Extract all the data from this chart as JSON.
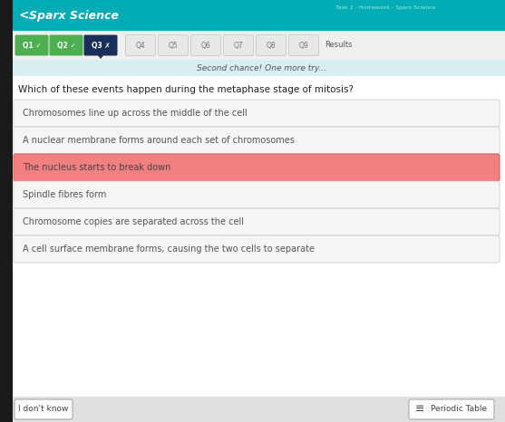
{
  "header_bg": "#00adb5",
  "header_text": "Sparx Science",
  "header_text_color": "#ffffff",
  "nav_buttons": [
    {
      "label": "Q1",
      "icon": "✓",
      "color": "#4caf50",
      "text_color": "#ffffff"
    },
    {
      "label": "Q2",
      "icon": "✓",
      "color": "#4caf50",
      "text_color": "#ffffff"
    },
    {
      "label": "Q3",
      "icon": "✗",
      "color": "#1a2e5a",
      "text_color": "#ffffff"
    }
  ],
  "nav_plain": [
    "Q4",
    "Q5",
    "Q6",
    "Q7",
    "Q8",
    "Q9"
  ],
  "nav_plain_color": "#e8e8e8",
  "nav_plain_text_color": "#777777",
  "results_label": "Results",
  "second_chance_text": "Second chance! One more try...",
  "question": "Which of these events happen during the metaphase stage of mitosis?",
  "answers": [
    {
      "text": "Chromosomes line up across the middle of the cell",
      "highlight": false
    },
    {
      "text": "A nuclear membrane forms around each set of chromosomes",
      "highlight": false
    },
    {
      "text": "The nucleus starts to break down",
      "highlight": true
    },
    {
      "text": "Spindle fibres form",
      "highlight": false
    },
    {
      "text": "Chromosome copies are separated across the cell",
      "highlight": false
    },
    {
      "text": "A cell surface membrane forms, causing the two cells to separate",
      "highlight": false
    }
  ],
  "answer_bg": "#f5f5f5",
  "answer_border": "#cccccc",
  "answer_text_color": "#555555",
  "highlight_bg": "#f28080",
  "highlight_text_color": "#444444",
  "highlight_border": "#e06060",
  "footer_btn1": "I don't know",
  "footer_btn2": "Periodic Table",
  "bg_color": "#b0b0b0",
  "content_bg": "#ffffff",
  "left_border_color": "#2a2a2a",
  "nav_bg": "#f0f0f0",
  "second_chance_bg": "#d8eef0"
}
